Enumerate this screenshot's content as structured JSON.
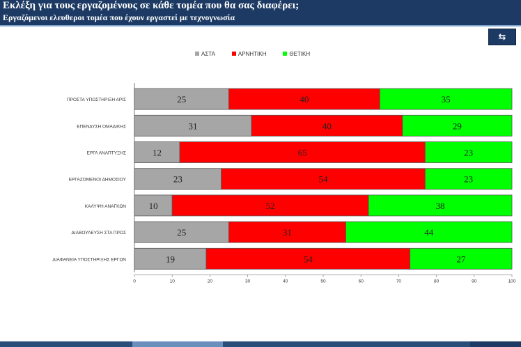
{
  "header": {
    "title": "Εκλέξη για τους εργαζομένους σε κάθε τομέα που θα σας διαφέρει;",
    "subtitle": "Εργαζόμενοι ελευθεροι τομέα που έχουν εργαστεί με τεχνογνωσία"
  },
  "toolbar": {
    "back_symbol": "⇆"
  },
  "colors": {
    "header_bg": "#1c3a63",
    "series_1": "#a6a6a6",
    "series_2": "#ff0000",
    "series_3": "#00ff00"
  },
  "chart_data": {
    "type": "bar",
    "orientation": "horizontal",
    "stacked": true,
    "legend_position": "top",
    "grid": false,
    "categories": [
      "ΠΡΟΣΤΑ ΥΠΟΣΤΗΡΙΞΗ ΑΡΙΣ",
      "ΕΠΕΝΔΥΣΗ ΟΜΑΔΙΚΗΣ",
      "ΕΡΓΑ ΑΝΑΠΤΥΞΗΣ",
      "ΕΡΓΑΖΟΜΕΝΟΙ ΔΗΜΟΣΙΟΥ",
      "ΚΑΛΥΨΗ ΑΝΑΓΚΩΝ",
      "ΔΙΑΒΟΥΛΕΥΣΗ ΣΤΑ ΠΡΟΣ",
      "ΔΙΑΦΑΝΕΙΑ ΥΠΟΣΤΗΡΙΞΗΣ ΕΡΓΩΝ"
    ],
    "series": [
      {
        "name": "ΑΣΤΑ",
        "color": "#a6a6a6",
        "values": [
          25,
          31,
          12,
          23,
          10,
          25,
          19
        ]
      },
      {
        "name": "ΑΡΝΗΤΙΚΗ",
        "color": "#ff0000",
        "values": [
          40,
          40,
          65,
          54,
          52,
          31,
          54
        ]
      },
      {
        "name": "ΘΕΤΙΚΗ",
        "color": "#00ff00",
        "values": [
          35,
          29,
          23,
          23,
          38,
          44,
          27
        ]
      }
    ],
    "xlim": [
      0,
      100
    ],
    "xticks": [
      0,
      10,
      20,
      30,
      40,
      50,
      60,
      70,
      80,
      90,
      100
    ]
  }
}
